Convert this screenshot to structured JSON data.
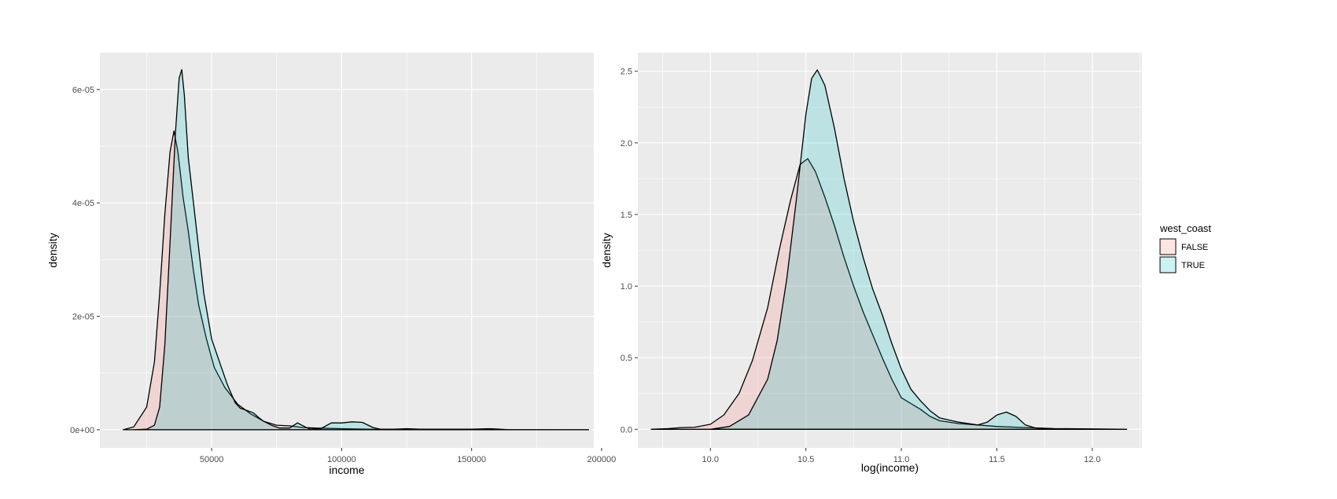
{
  "legend": {
    "title": "west_coast",
    "items": [
      {
        "label": "FALSE",
        "fill": "#F8766D"
      },
      {
        "label": "TRUE",
        "fill": "#00BFC4"
      }
    ]
  },
  "style": {
    "panel_background": "#EBEBEB",
    "grid_color": "#FFFFFF",
    "outline_color": "#000000",
    "fill_opacity": 0.2
  },
  "chart_data": [
    {
      "type": "area",
      "title": "",
      "xlabel": "income",
      "ylabel": "density",
      "xlim": [
        7000,
        197000
      ],
      "ylim": [
        -3.2e-06,
        6.65e-05
      ],
      "x_ticks": [
        50000,
        100000,
        150000,
        200000
      ],
      "x_tick_labels": [
        "50000",
        "100000",
        "150000",
        "200000"
      ],
      "y_ticks": [
        0,
        2e-05,
        4e-05,
        6e-05
      ],
      "y_tick_labels": [
        "0e+00",
        "2e-05",
        "4e-05",
        "6e-05"
      ],
      "grid": true,
      "series": [
        {
          "name": "FALSE",
          "x": [
            16000,
            20000,
            25000,
            28000,
            30000,
            32000,
            34000,
            35500,
            37000,
            39000,
            41000,
            43000,
            45000,
            48000,
            51000,
            55000,
            60000,
            65000,
            70000,
            75000,
            80000,
            85000,
            90000,
            100000,
            110000,
            120000,
            150000,
            195000
          ],
          "y": [
            0,
            5e-07,
            4e-06,
            1.2e-05,
            2.4e-05,
            3.8e-05,
            4.9e-05,
            5.27e-05,
            4.9e-05,
            4.1e-05,
            3.5e-05,
            2.8e-05,
            2.2e-05,
            1.6e-05,
            1.1e-05,
            7.5e-06,
            4.5e-06,
            2.8e-06,
            1.5e-06,
            8e-07,
            7e-07,
            4e-07,
            3e-07,
            2e-07,
            1e-07,
            5e-08,
            2e-08,
            0
          ]
        },
        {
          "name": "TRUE",
          "x": [
            20000,
            25000,
            28000,
            30000,
            32000,
            34000,
            36000,
            37500,
            38500,
            39500,
            41000,
            43000,
            45000,
            47000,
            50000,
            53000,
            56000,
            59000,
            61000,
            63000,
            66000,
            68000,
            70000,
            73000,
            76000,
            80000,
            83000,
            86000,
            88000,
            92000,
            96000,
            100000,
            104000,
            108000,
            112000,
            115000,
            120000,
            125000,
            130000,
            150000,
            157000,
            165000,
            195000
          ],
          "y": [
            0,
            1e-07,
            8e-07,
            4e-06,
            1.5e-05,
            3.3e-05,
            5.2e-05,
            6.2e-05,
            6.35e-05,
            5.9e-05,
            4.8e-05,
            4e-05,
            3.2e-05,
            2.4e-05,
            1.6e-05,
            1.2e-05,
            8e-06,
            4.8e-06,
            3.8e-06,
            3.5e-06,
            3e-06,
            2.2e-06,
            1.5e-06,
            8e-07,
            3e-07,
            3e-07,
            1.2e-06,
            5e-07,
            1e-07,
            2e-07,
            1.2e-06,
            1.2e-06,
            1.4e-06,
            1.3e-06,
            4e-07,
            1e-07,
            1e-07,
            2e-07,
            1e-07,
            1e-07,
            2e-07,
            0,
            0
          ]
        }
      ]
    },
    {
      "type": "area",
      "title": "",
      "xlabel": "log(income)",
      "ylabel": "density",
      "xlim": [
        9.62,
        12.26
      ],
      "ylim": [
        -0.13,
        2.63
      ],
      "x_ticks": [
        10.0,
        10.5,
        11.0,
        11.5,
        12.0
      ],
      "x_tick_labels": [
        "10.0",
        "10.5",
        "11.0",
        "11.5",
        "12.0"
      ],
      "y_ticks": [
        0,
        0.5,
        1.0,
        1.5,
        2.0,
        2.5
      ],
      "y_tick_labels": [
        "0.0",
        "0.5",
        "1.0",
        "1.5",
        "2.0",
        "2.5"
      ],
      "grid": true,
      "series": [
        {
          "name": "FALSE",
          "x": [
            9.69,
            9.78,
            9.85,
            9.92,
            10.0,
            10.07,
            10.15,
            10.22,
            10.3,
            10.36,
            10.42,
            10.47,
            10.51,
            10.55,
            10.6,
            10.65,
            10.7,
            10.75,
            10.8,
            10.85,
            10.9,
            10.95,
            11.0,
            11.05,
            11.1,
            11.15,
            11.2,
            11.3,
            11.4,
            11.5,
            11.6,
            11.7,
            11.8,
            12.0,
            12.18
          ],
          "y": [
            0,
            0.005,
            0.012,
            0.015,
            0.035,
            0.1,
            0.25,
            0.48,
            0.85,
            1.25,
            1.6,
            1.85,
            1.89,
            1.8,
            1.62,
            1.42,
            1.2,
            1.0,
            0.82,
            0.66,
            0.5,
            0.35,
            0.22,
            0.18,
            0.14,
            0.09,
            0.06,
            0.04,
            0.03,
            0.02,
            0.015,
            0.01,
            0.005,
            0.003,
            0
          ]
        },
        {
          "name": "TRUE",
          "x": [
            10.0,
            10.1,
            10.2,
            10.3,
            10.35,
            10.4,
            10.45,
            10.5,
            10.53,
            10.56,
            10.6,
            10.65,
            10.7,
            10.75,
            10.8,
            10.85,
            10.9,
            10.95,
            11.0,
            11.05,
            11.1,
            11.15,
            11.2,
            11.3,
            11.4,
            11.45,
            11.5,
            11.55,
            11.6,
            11.65,
            11.7,
            11.8,
            12.0
          ],
          "y": [
            0,
            0.02,
            0.1,
            0.35,
            0.62,
            1.05,
            1.6,
            2.2,
            2.45,
            2.51,
            2.4,
            2.1,
            1.75,
            1.45,
            1.2,
            0.98,
            0.8,
            0.6,
            0.42,
            0.28,
            0.2,
            0.13,
            0.08,
            0.05,
            0.03,
            0.05,
            0.1,
            0.12,
            0.09,
            0.03,
            0.01,
            0.003,
            0
          ]
        }
      ]
    }
  ]
}
